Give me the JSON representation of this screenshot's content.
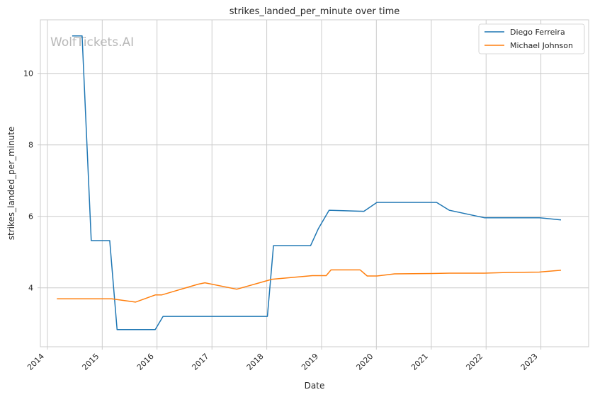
{
  "chart_data": {
    "type": "line",
    "title": "strikes_landed_per_minute over time",
    "xlabel": "Date",
    "ylabel": "strikes_landed_per_minute",
    "watermark": "WolfTickets.AI",
    "x_ticks": [
      "2014",
      "2015",
      "2016",
      "2017",
      "2018",
      "2019",
      "2020",
      "2021",
      "2022",
      "2023"
    ],
    "y_ticks": [
      4,
      6,
      8,
      10
    ],
    "xlim": [
      "2013-11-15",
      "2023-11-15"
    ],
    "ylim": [
      2.35,
      11.5
    ],
    "grid": true,
    "legend_position": "top-right",
    "series": [
      {
        "name": "Diego Ferreira",
        "color": "#1f77b4",
        "points": [
          [
            "2014-06-15",
            11.05
          ],
          [
            "2014-08-20",
            11.05
          ],
          [
            "2014-10-20",
            5.32
          ],
          [
            "2015-02-20",
            5.32
          ],
          [
            "2015-04-10",
            2.83
          ],
          [
            "2015-12-20",
            2.83
          ],
          [
            "2016-02-10",
            3.2
          ],
          [
            "2018-01-05",
            3.2
          ],
          [
            "2018-02-15",
            5.18
          ],
          [
            "2018-10-20",
            5.18
          ],
          [
            "2018-12-10",
            5.65
          ],
          [
            "2019-02-20",
            6.17
          ],
          [
            "2019-10-10",
            6.14
          ],
          [
            "2020-01-05",
            6.39
          ],
          [
            "2021-02-05",
            6.39
          ],
          [
            "2021-05-01",
            6.17
          ],
          [
            "2021-12-20",
            5.96
          ],
          [
            "2022-12-20",
            5.96
          ],
          [
            "2023-05-15",
            5.9
          ]
        ]
      },
      {
        "name": "Michael Johnson",
        "color": "#ff7f0e",
        "points": [
          [
            "2014-03-05",
            3.69
          ],
          [
            "2015-03-05",
            3.69
          ],
          [
            "2015-08-10",
            3.6
          ],
          [
            "2015-12-20",
            3.8
          ],
          [
            "2016-02-01",
            3.8
          ],
          [
            "2016-10-01",
            4.1
          ],
          [
            "2016-11-15",
            4.14
          ],
          [
            "2017-06-15",
            3.96
          ],
          [
            "2018-02-05",
            4.24
          ],
          [
            "2018-11-01",
            4.34
          ],
          [
            "2019-02-01",
            4.34
          ],
          [
            "2019-03-05",
            4.5
          ],
          [
            "2019-09-15",
            4.5
          ],
          [
            "2019-11-01",
            4.33
          ],
          [
            "2020-01-05",
            4.33
          ],
          [
            "2020-05-01",
            4.39
          ],
          [
            "2021-01-01",
            4.4
          ],
          [
            "2021-05-01",
            4.41
          ],
          [
            "2021-12-20",
            4.41
          ],
          [
            "2022-06-01",
            4.43
          ],
          [
            "2022-12-20",
            4.44
          ],
          [
            "2023-05-15",
            4.49
          ]
        ]
      }
    ]
  }
}
